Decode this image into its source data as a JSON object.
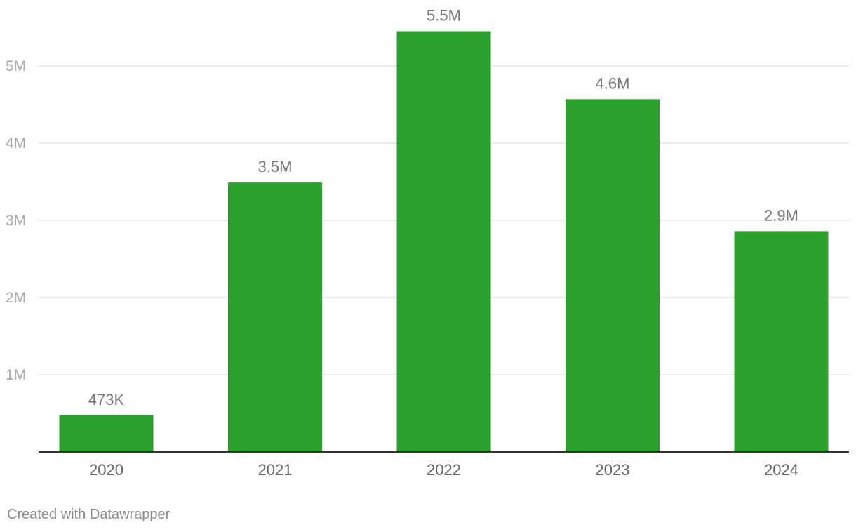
{
  "chart_data": {
    "type": "bar",
    "categories": [
      "2020",
      "2021",
      "2022",
      "2023",
      "2024"
    ],
    "values": [
      473000,
      3490000,
      5450000,
      4570000,
      2860000
    ],
    "data_labels": [
      "473K",
      "3.5M",
      "5.5M",
      "4.6M",
      "2.9M"
    ],
    "y_ticks": [
      {
        "value": 1000000,
        "label": "1M"
      },
      {
        "value": 2000000,
        "label": "2M"
      },
      {
        "value": 3000000,
        "label": "3M"
      },
      {
        "value": 4000000,
        "label": "4M"
      },
      {
        "value": 5000000,
        "label": "5M"
      }
    ],
    "ylim": [
      0,
      5500000
    ],
    "grid": true,
    "bar_color": "#2ca02c",
    "title": "",
    "xlabel": "",
    "ylabel": ""
  },
  "footer": {
    "credit": "Created with Datawrapper"
  }
}
